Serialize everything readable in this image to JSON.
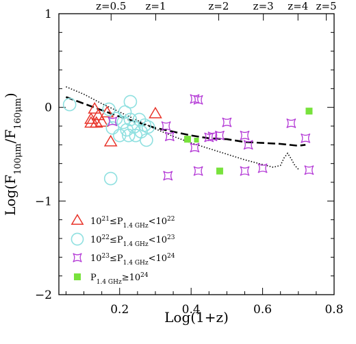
{
  "chart_data": {
    "type": "scatter",
    "xlabel": "Log(1+z)",
    "ylabel": "Log(F100μm/F160μm)",
    "ylabel_parts": {
      "base": "Log(F",
      "sub1": "100μm",
      "slash": "/F",
      "sub2": "160μm",
      "close": ")"
    },
    "xlim": [
      0.03,
      0.8
    ],
    "ylim": [
      -2,
      1
    ],
    "xticks": [
      0.2,
      0.4,
      0.6,
      0.8
    ],
    "xtick_labels": [
      "0.2",
      "0.4",
      "0.6",
      "0.8"
    ],
    "yticks": [
      -2,
      -1,
      0,
      1
    ],
    "ytick_labels": [
      "−2",
      "−1",
      "0",
      "1"
    ],
    "top_axis": {
      "ticks": [
        {
          "label": "z=0.5",
          "x": 0.1761
        },
        {
          "label": "z=1",
          "x": 0.301
        },
        {
          "label": "z=2",
          "x": 0.4771
        },
        {
          "label": "z=3",
          "x": 0.6021
        },
        {
          "label": "z=4",
          "x": 0.699
        },
        {
          "label": "z=5",
          "x": 0.7782
        }
      ]
    },
    "grid": false,
    "legend_position": "bottom-left",
    "series": [
      {
        "name": "10²¹≤P1.4 GHz<10²²",
        "legend": {
          "pre": "10",
          "exp1": "21",
          "mid": "≤P",
          "sub": "1.4 GHz",
          "lt": "<10",
          "exp2": "22"
        },
        "marker": "triangle",
        "color": "#e8342a",
        "points": [
          [
            0.12,
            -0.13
          ],
          [
            0.13,
            -0.02
          ],
          [
            0.14,
            -0.09
          ],
          [
            0.15,
            -0.16
          ],
          [
            0.12,
            -0.17
          ],
          [
            0.135,
            -0.17
          ],
          [
            0.165,
            -0.06
          ],
          [
            0.175,
            -0.37
          ],
          [
            0.3,
            -0.07
          ]
        ]
      },
      {
        "name": "10²²≤P1.4 GHz<10²³",
        "legend": {
          "pre": "10",
          "exp1": "22",
          "mid": "≤P",
          "sub": "1.4 GHz",
          "lt": "<10",
          "exp2": "23"
        },
        "marker": "circle",
        "color": "#8fe0e0",
        "points": [
          [
            0.06,
            0.03
          ],
          [
            0.17,
            -0.02
          ],
          [
            0.175,
            -0.76
          ],
          [
            0.18,
            -0.22
          ],
          [
            0.19,
            -0.12
          ],
          [
            0.2,
            -0.3
          ],
          [
            0.21,
            -0.16
          ],
          [
            0.215,
            -0.05
          ],
          [
            0.22,
            -0.24
          ],
          [
            0.225,
            -0.3
          ],
          [
            0.23,
            0.06
          ],
          [
            0.23,
            -0.13
          ],
          [
            0.24,
            -0.21
          ],
          [
            0.245,
            -0.3
          ],
          [
            0.255,
            -0.13
          ],
          [
            0.26,
            -0.26
          ],
          [
            0.27,
            -0.19
          ],
          [
            0.28,
            -0.21
          ],
          [
            0.275,
            -0.35
          ]
        ]
      },
      {
        "name": "10²³≤P1.4 GHz<10²⁴",
        "legend": {
          "pre": "10",
          "exp1": "23",
          "mid": "≤P",
          "sub": "1.4 GHz",
          "lt": "<10",
          "exp2": "24"
        },
        "marker": "star4",
        "color": "#b43ad6",
        "points": [
          [
            0.18,
            -0.15
          ],
          [
            0.33,
            -0.2
          ],
          [
            0.34,
            -0.31
          ],
          [
            0.335,
            -0.73
          ],
          [
            0.41,
            0.09
          ],
          [
            0.42,
            0.08
          ],
          [
            0.41,
            -0.43
          ],
          [
            0.42,
            -0.68
          ],
          [
            0.45,
            -0.32
          ],
          [
            0.46,
            -0.31
          ],
          [
            0.48,
            -0.3
          ],
          [
            0.5,
            -0.16
          ],
          [
            0.55,
            -0.3
          ],
          [
            0.56,
            -0.4
          ],
          [
            0.55,
            -0.68
          ],
          [
            0.6,
            -0.65
          ],
          [
            0.68,
            -0.17
          ],
          [
            0.72,
            -0.33
          ],
          [
            0.73,
            -0.67
          ]
        ]
      },
      {
        "name": "P1.4 GHz≥10²⁴",
        "legend": {
          "pre": "",
          "exp1": "",
          "mid": "P",
          "sub": "1.4 GHz",
          "lt": "≥10",
          "exp2": "24"
        },
        "marker": "square",
        "color": "#78e23c",
        "points": [
          [
            0.39,
            -0.34
          ],
          [
            0.415,
            -0.35
          ],
          [
            0.48,
            -0.68
          ],
          [
            0.73,
            -0.04
          ]
        ]
      }
    ],
    "curves": [
      {
        "style": "dashed",
        "points": [
          [
            0.05,
            0.11
          ],
          [
            0.1,
            0.04
          ],
          [
            0.15,
            -0.03
          ],
          [
            0.2,
            -0.1
          ],
          [
            0.25,
            -0.16
          ],
          [
            0.3,
            -0.22
          ],
          [
            0.35,
            -0.26
          ],
          [
            0.4,
            -0.3
          ],
          [
            0.45,
            -0.33
          ],
          [
            0.5,
            -0.34
          ],
          [
            0.55,
            -0.37
          ],
          [
            0.6,
            -0.38
          ],
          [
            0.65,
            -0.39
          ],
          [
            0.7,
            -0.41
          ],
          [
            0.72,
            -0.4
          ]
        ]
      },
      {
        "style": "dotted",
        "points": [
          [
            0.05,
            0.22
          ],
          [
            0.1,
            0.14
          ],
          [
            0.15,
            0.04
          ],
          [
            0.2,
            -0.05
          ],
          [
            0.25,
            -0.14
          ],
          [
            0.3,
            -0.23
          ],
          [
            0.35,
            -0.31
          ],
          [
            0.4,
            -0.38
          ],
          [
            0.45,
            -0.44
          ],
          [
            0.5,
            -0.5
          ],
          [
            0.55,
            -0.56
          ],
          [
            0.6,
            -0.61
          ],
          [
            0.63,
            -0.64
          ],
          [
            0.65,
            -0.62
          ],
          [
            0.66,
            -0.54
          ],
          [
            0.67,
            -0.49
          ],
          [
            0.68,
            -0.55
          ],
          [
            0.69,
            -0.62
          ],
          [
            0.7,
            -0.66
          ]
        ]
      }
    ]
  }
}
